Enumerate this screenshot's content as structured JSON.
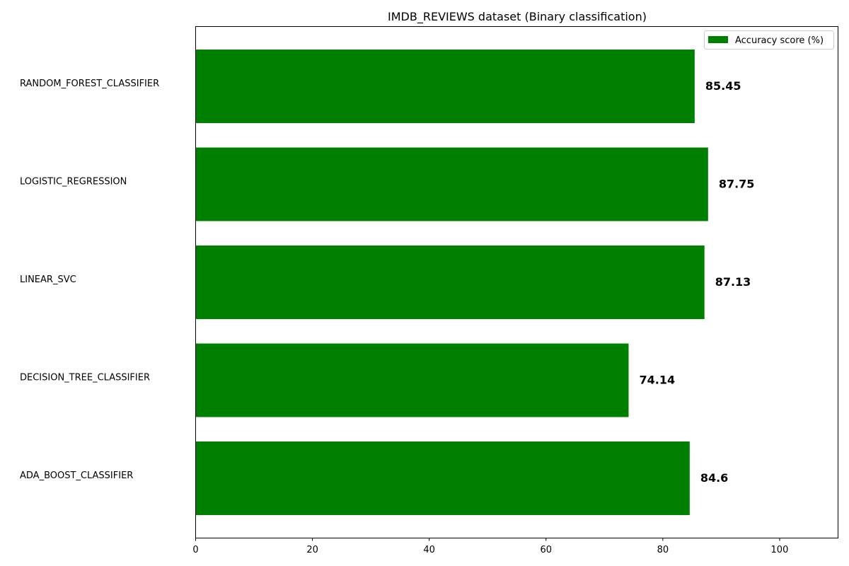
{
  "chart_data": {
    "type": "bar",
    "orientation": "horizontal",
    "title": "IMDB_REVIEWS dataset (Binary classification)",
    "xlabel": "",
    "ylabel": "",
    "categories": [
      "RANDOM_FOREST_CLASSIFIER",
      "LOGISTIC_REGRESSION",
      "LINEAR_SVC",
      "DECISION_TREE_CLASSIFIER",
      "ADA_BOOST_CLASSIFIER"
    ],
    "series": [
      {
        "name": "Accuracy score (%)",
        "values": [
          85.45,
          87.75,
          87.13,
          74.14,
          84.6
        ],
        "labels": [
          "85.45",
          "87.75",
          "87.13",
          "74.14",
          "84.6"
        ],
        "color": "#008000"
      }
    ],
    "xlim": [
      0,
      110
    ],
    "xticks": [
      0,
      20,
      40,
      60,
      80,
      100
    ],
    "grid": false,
    "legend": "top-right"
  }
}
